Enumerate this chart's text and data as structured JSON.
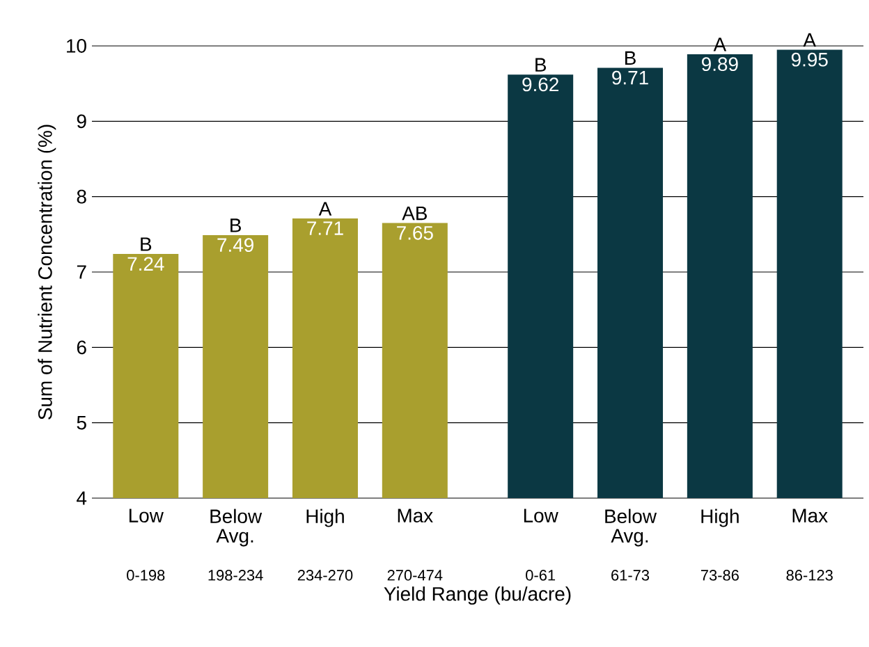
{
  "chart_data": {
    "type": "bar",
    "xlabel": "Yield Range (bu/acre)",
    "ylabel": "Sum of Nutrient Concentration (%)",
    "categories": [
      "Low",
      "Below Avg.",
      "High",
      "Max",
      "Low",
      "Below Avg.",
      "High",
      "Max"
    ],
    "values": [
      7.24,
      7.49,
      7.71,
      7.65,
      9.62,
      9.71,
      9.89,
      9.95
    ],
    "colors": [
      "#a99f2e",
      "#a99f2e",
      "#a99f2e",
      "#a99f2e",
      "#0b3843",
      "#0b3843",
      "#0b3843",
      "#0b3843"
    ],
    "data_labels": true,
    "ylim": [
      4,
      10
    ],
    "yticks": [
      4,
      5,
      6,
      7,
      8,
      9,
      10
    ],
    "grid": "y",
    "annotations": [
      "B",
      "B",
      "A",
      "AB",
      "B",
      "B",
      "A",
      "A",
      "0-198",
      "198-234",
      "234-270",
      "270-474",
      "0-61",
      "61-73",
      "73-86",
      "86-123"
    ]
  }
}
